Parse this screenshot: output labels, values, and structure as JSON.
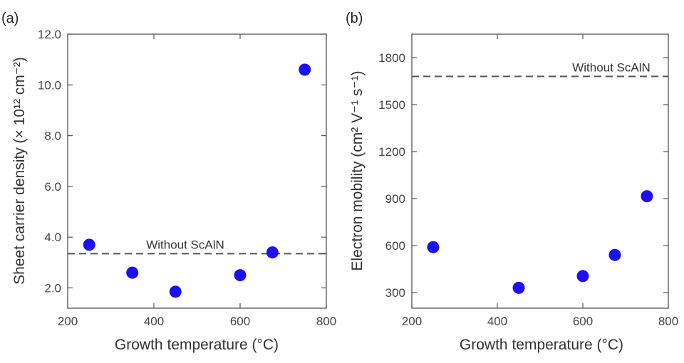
{
  "chart_data": [
    {
      "type": "scatter",
      "panel_label": "(a)",
      "xlabel": "Growth temperature (°C)",
      "ylabel": "Sheet carrier density (× 10¹² cm⁻²)",
      "xlim": [
        200,
        800
      ],
      "ylim": [
        1.2,
        12.0
      ],
      "x_ticks": [
        200,
        400,
        600,
        800
      ],
      "y_ticks": [
        2.0,
        4.0,
        6.0,
        8.0,
        10.0,
        12.0
      ],
      "y_tick_labels": [
        "2.0",
        "4.0",
        "6.0",
        "8.0",
        "10.0",
        "12.0"
      ],
      "marker_color": "#1a10f0",
      "x": [
        250,
        350,
        450,
        600,
        675,
        750
      ],
      "y": [
        3.7,
        2.6,
        1.85,
        2.5,
        3.4,
        10.6
      ],
      "reference_line": {
        "y": 3.35,
        "label": "Without ScAlN",
        "style": "dashed"
      }
    },
    {
      "type": "scatter",
      "panel_label": "(b)",
      "xlabel": "Growth temperature (°C)",
      "ylabel": "Electron mobility (cm² V⁻¹ s⁻¹)",
      "xlim": [
        200,
        800
      ],
      "ylim": [
        200,
        1950
      ],
      "x_ticks": [
        200,
        400,
        600,
        800
      ],
      "y_ticks": [
        300,
        600,
        900,
        1200,
        1500,
        1800
      ],
      "y_tick_labels": [
        "300",
        "600",
        "900",
        "1200",
        "1500",
        "1800"
      ],
      "marker_color": "#1a10f0",
      "x": [
        250,
        450,
        600,
        675,
        750
      ],
      "y": [
        590,
        330,
        405,
        540,
        915
      ],
      "reference_line": {
        "y": 1680,
        "label": "Without ScAlN",
        "style": "dashed"
      }
    }
  ]
}
